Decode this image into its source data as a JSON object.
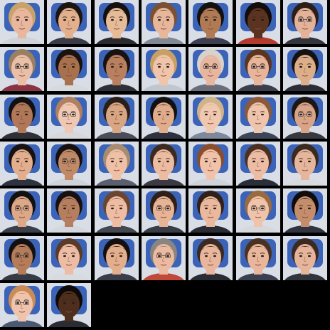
{
  "colors": {
    "background": "#000000",
    "backdrop": "#d8dde6",
    "chair": "#3b63b8"
  },
  "faces": [
    {
      "skin": "#e8b79e",
      "hair": "#c9a26a",
      "shirt": "#cfd3d8",
      "glasses": false
    },
    {
      "skin": "#e2b08c",
      "hair": "#1c1512",
      "shirt": "#3a3d48",
      "glasses": false
    },
    {
      "skin": "#e6bb98",
      "hair": "#141010",
      "shirt": "#2b2b2f",
      "glasses": false
    },
    {
      "skin": "#e7b79c",
      "hair": "#7a5233",
      "shirt": "#7f8a96",
      "glasses": false
    },
    {
      "skin": "#b07a55",
      "hair": "#151010",
      "shirt": "#3c3f52",
      "glasses": false
    },
    {
      "skin": "#5a3420",
      "hair": "#120c0a",
      "shirt": "#b33a2c",
      "glasses": false
    },
    {
      "skin": "#e3b299",
      "hair": "#2c1f18",
      "shirt": "#34343c",
      "glasses": true
    },
    {
      "skin": "#e9bfa8",
      "hair": "#9a8060",
      "shirt": "#8a3342",
      "glasses": true
    },
    {
      "skin": "#a8714e",
      "hair": "#1a1210",
      "shirt": "#d6dadf",
      "glasses": false
    },
    {
      "skin": "#b98060",
      "hair": "#181210",
      "shirt": "#2d3038",
      "glasses": false
    },
    {
      "skin": "#efc4aa",
      "hair": "#c9a064",
      "shirt": "#bfc6d0",
      "glasses": false
    },
    {
      "skin": "#e8b59e",
      "hair": "#d8d2cc",
      "shirt": "#6a6e7a",
      "glasses": true
    },
    {
      "skin": "#e8b49a",
      "hair": "#5a3520",
      "shirt": "#3b3f4c",
      "glasses": true
    },
    {
      "skin": "#dcae8a",
      "hair": "#161212",
      "shirt": "#2a2d38",
      "glasses": false
    },
    {
      "skin": "#b07858",
      "hair": "#121010",
      "shirt": "#303038",
      "glasses": false
    },
    {
      "skin": "#efc8b4",
      "hair": "#b08060",
      "shirt": "#d8d8dc",
      "glasses": true
    },
    {
      "skin": "#d9a683",
      "hair": "#2a1f18",
      "shirt": "#4a4e58",
      "glasses": false
    },
    {
      "skin": "#e0ad8c",
      "hair": "#141010",
      "shirt": "#2e3240",
      "glasses": false
    },
    {
      "skin": "#f0c8b0",
      "hair": "#d0b488",
      "shirt": "#7c8a9c",
      "glasses": false
    },
    {
      "skin": "#eec4ac",
      "hair": "#8c5a38",
      "shirt": "#3c4658",
      "glasses": false
    },
    {
      "skin": "#d8a488",
      "hair": "#1c1614",
      "shirt": "#383840",
      "glasses": true
    },
    {
      "skin": "#e2ae8e",
      "hair": "#181212",
      "shirt": "#2e3340",
      "glasses": false
    },
    {
      "skin": "#c08a66",
      "hair": "#161010",
      "shirt": "#cfd4da",
      "glasses": true
    },
    {
      "skin": "#eec0a6",
      "hair": "#a88c70",
      "shirt": "#5a6070",
      "glasses": false
    },
    {
      "skin": "#ecbca2",
      "hair": "#3c2a20",
      "shirt": "#3a3a42",
      "glasses": false
    },
    {
      "skin": "#f0c2aa",
      "hair": "#8a4e2c",
      "shirt": "#d0d4da",
      "glasses": false
    },
    {
      "skin": "#ecbca4",
      "hair": "#4a3020",
      "shirt": "#2a2e3a",
      "glasses": false
    },
    {
      "skin": "#e6b69c",
      "hair": "#3a2a20",
      "shirt": "#d8dade",
      "glasses": false
    },
    {
      "skin": "#dca888",
      "hair": "#121010",
      "shirt": "#3a3e48",
      "glasses": true
    },
    {
      "skin": "#b57e5e",
      "hair": "#161010",
      "shirt": "#d4d8de",
      "glasses": false
    },
    {
      "skin": "#eebca2",
      "hair": "#6a4630",
      "shirt": "#444850",
      "glasses": false
    },
    {
      "skin": "#e8b496",
      "hair": "#2e2018",
      "shirt": "#383c46",
      "glasses": true
    },
    {
      "skin": "#eab89c",
      "hair": "#302018",
      "shirt": "#2a2c34",
      "glasses": false
    },
    {
      "skin": "#f0c4aa",
      "hair": "#9a6a40",
      "shirt": "#d6d8dc",
      "glasses": true
    },
    {
      "skin": "#c48e6c",
      "hair": "#100c0c",
      "shirt": "#303440",
      "glasses": false
    },
    {
      "skin": "#b57c5a",
      "hair": "#121010",
      "shirt": "#363a44",
      "glasses": true
    },
    {
      "skin": "#ecbca4",
      "hair": "#5a3a28",
      "shirt": "#d8dade",
      "glasses": false
    },
    {
      "skin": "#e2ae8c",
      "hair": "#141010",
      "shirt": "#3a3e4a",
      "glasses": false
    },
    {
      "skin": "#ebbaa0",
      "hair": "#8a8580",
      "shirt": "#c04a3a",
      "glasses": true
    },
    {
      "skin": "#e8b69c",
      "hair": "#3a2a22",
      "shirt": "#2a2c34",
      "glasses": false
    },
    {
      "skin": "#e8b69a",
      "hair": "#4a3222",
      "shirt": "#3a4050",
      "glasses": false
    },
    {
      "skin": "#e6b49a",
      "hair": "#3c2a20",
      "shirt": "#30343e",
      "glasses": false
    },
    {
      "skin": "#f0c4ac",
      "hair": "#c98c58",
      "shirt": "#4a5872",
      "glasses": true
    },
    {
      "skin": "#4e2e1c",
      "hair": "#0e0a08",
      "shirt": "#2a2c34",
      "glasses": false
    }
  ]
}
